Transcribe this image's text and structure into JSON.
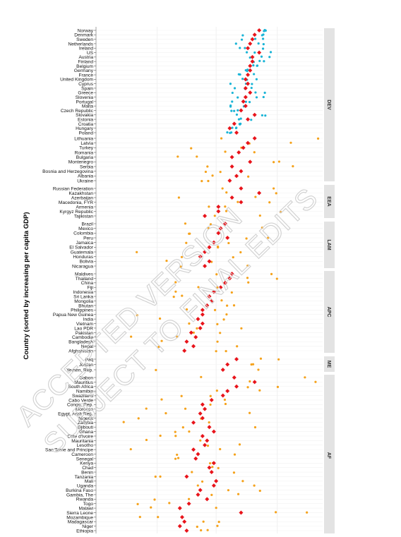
{
  "chart_data": {
    "type": "scatter",
    "ylabel": "Country (sorted by increasing per capita GDP)",
    "xlabel": "",
    "grid": true,
    "colors": {
      "dev": "#19b4d6",
      "other": "#f5a21b",
      "mean": "#e8141b",
      "strip": "#e3e3e3"
    },
    "watermark": [
      "ACCEPTED VERSION",
      "SUBJECT TO FINAL EDITS"
    ],
    "panels": [
      {
        "label": "DEV",
        "countries": [
          "Norway",
          "Denmark",
          "Sweden",
          "Netherlands",
          "Ireland",
          "US",
          "Austria",
          "Finland",
          "Belgium",
          "Germany",
          "France",
          "United Kingdom",
          "Cyprus",
          "Spain",
          "Greece",
          "Slovenia",
          "Portugal",
          "Malta",
          "Czech Republic",
          "Slovakia",
          "Estonia",
          "Croatia",
          "Hungary",
          "Poland"
        ],
        "means": [
          0.72,
          0.7,
          0.69,
          0.68,
          0.67,
          0.72,
          0.69,
          0.69,
          0.68,
          0.68,
          0.67,
          0.66,
          0.67,
          0.66,
          0.68,
          0.66,
          0.65,
          0.66,
          0.64,
          0.7,
          0.67,
          0.61,
          0.59,
          0.62
        ]
      },
      {
        "label": "",
        "countries": [
          "Lithuania",
          "Latvia",
          "Turkey",
          "Romania",
          "Bulgaria",
          "Montenegro",
          "Serbia",
          "Bosnia and Herzegovina",
          "Albania",
          "Ukraine"
        ],
        "means": [
          0.7,
          0.67,
          0.65,
          0.63,
          0.6,
          0.68,
          0.6,
          0.64,
          0.62,
          0.59
        ]
      },
      {
        "label": "EEA",
        "countries": [
          "Russian Federation",
          "Kazakhstan",
          "Azerbaijan",
          "Macedonia, FYR",
          "Armenia",
          "Kyrgyz Republic",
          "Tajikistan"
        ],
        "means": [
          0.64,
          0.72,
          0.6,
          0.64,
          0.54,
          0.54,
          0.48
        ]
      },
      {
        "label": "LAM",
        "countries": [
          "Brazil",
          "Mexico",
          "Colombia",
          "Peru",
          "Jamaica",
          "El Salvador",
          "Guatemala",
          "Honduras",
          "Bolivia",
          "Nicaragua"
        ],
        "means": [
          0.57,
          0.55,
          0.54,
          0.58,
          0.52,
          0.5,
          0.48,
          0.46,
          0.5,
          0.48
        ]
      },
      {
        "label": "APC",
        "countries": [
          "Maldives",
          "Thailand",
          "China",
          "Fiji",
          "Indonesia",
          "Sri Lanka",
          "Mongolia",
          "Bhutan",
          "Philippines",
          "Papua New Guinea",
          "India",
          "Vietnam",
          "Lao PDR",
          "Pakistan",
          "Cambodia",
          "Bangladesh",
          "Nepal",
          "Afghanistan"
        ],
        "means": [
          0.6,
          0.59,
          0.57,
          0.55,
          0.52,
          0.5,
          0.51,
          0.49,
          0.47,
          0.47,
          0.45,
          0.47,
          0.46,
          0.42,
          0.44,
          0.4,
          0.43,
          0.39
        ]
      },
      {
        "label": "ME",
        "countries": [
          "Iraq",
          "Jordan",
          "Yemen, Rep."
        ],
        "means": [
          0.62,
          0.58,
          0.56
        ]
      },
      {
        "label": "AF",
        "countries": [
          "Gabon",
          "Mauritius",
          "South Africa",
          "Namibia",
          "Swaziland",
          "Cabo Verde",
          "Congo, Rep.",
          "Morocco",
          "Egypt, Arab Rep.",
          "Nigeria",
          "Zambia",
          "Djibouti",
          "Ghana",
          "Cote d'Ivoire",
          "Mauritania",
          "Lesotho",
          "Sao Tome and Principe",
          "Cameroon",
          "Senegal",
          "Kenya",
          "Chad",
          "Benin",
          "Tanzania",
          "Mali",
          "Uganda",
          "Burkina Faso",
          "Gambia, The",
          "Rwanda",
          "Togo",
          "Malawi",
          "Sierra Leone",
          "Mozambique",
          "Madagascar",
          "Niger",
          "Ethiopia"
        ],
        "means": [
          0.61,
          0.7,
          0.62,
          0.58,
          0.56,
          0.51,
          0.47,
          0.48,
          0.46,
          0.47,
          0.43,
          0.5,
          0.52,
          0.47,
          0.49,
          0.48,
          0.43,
          0.45,
          0.44,
          0.52,
          0.5,
          0.51,
          0.4,
          0.53,
          0.52,
          0.46,
          0.45,
          0.49,
          0.41,
          0.37,
          0.64,
          0.38,
          0.39,
          0.37,
          0.4
        ]
      }
    ]
  }
}
